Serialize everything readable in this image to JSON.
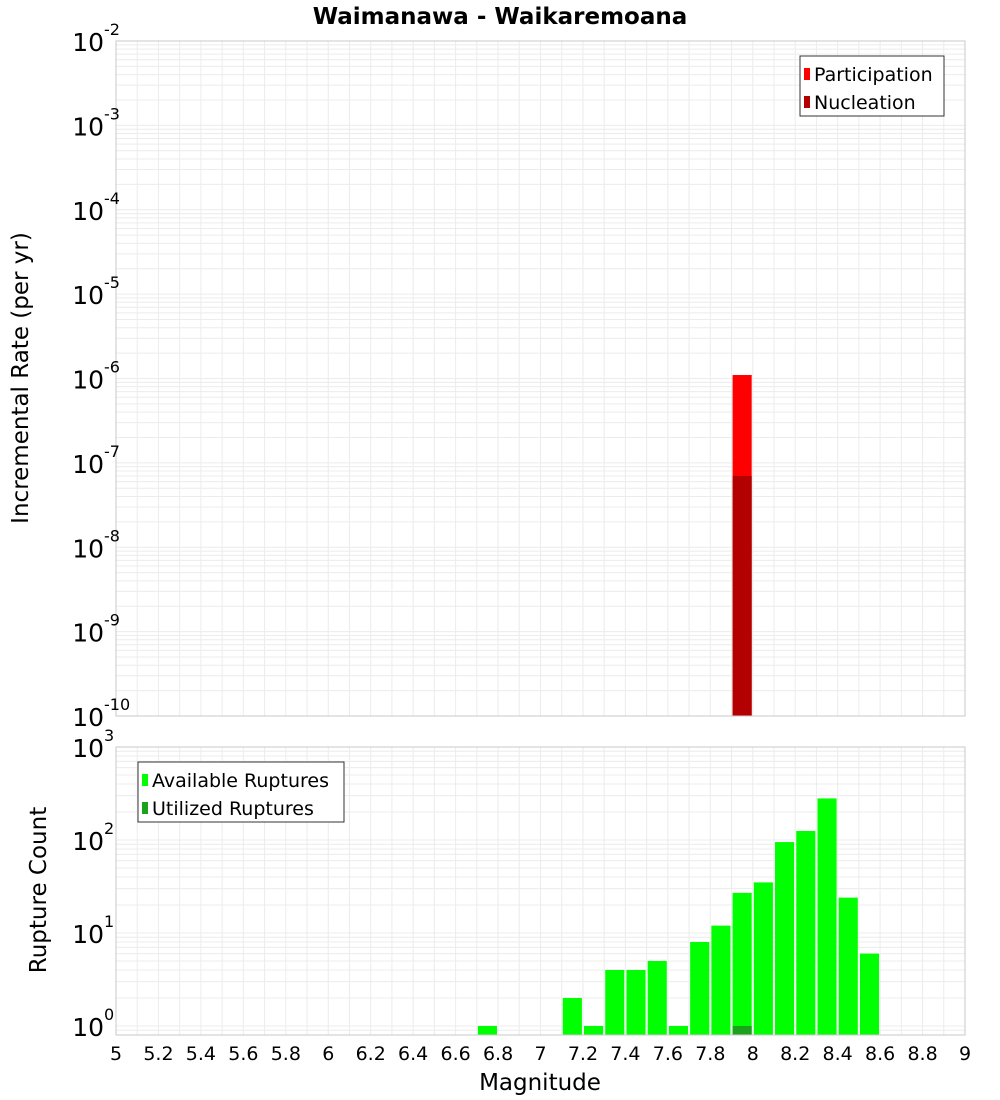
{
  "title": "Waimanawa - Waikaremoana",
  "colors": {
    "participation": "#ff0000",
    "nucleation": "#b30000",
    "available": "#00ff00",
    "utilized": "#1ba11b",
    "grid": "#ececec",
    "plot_border": "#c8c8c8"
  },
  "chart_data": [
    {
      "type": "bar",
      "panel": "top",
      "title": "Waimanawa - Waikaremoana",
      "xlabel": "",
      "ylabel": "Incremental Rate (per yr)",
      "yscale": "log",
      "xlim": [
        5,
        9
      ],
      "ylim": [
        1e-10,
        0.01
      ],
      "y_tick_base": "10",
      "y_ticks": [
        {
          "value": 0.01,
          "exp": "-2"
        },
        {
          "value": 0.001,
          "exp": "-3"
        },
        {
          "value": 0.0001,
          "exp": "-4"
        },
        {
          "value": 1e-05,
          "exp": "-5"
        },
        {
          "value": 1e-06,
          "exp": "-6"
        },
        {
          "value": 1e-07,
          "exp": "-7"
        },
        {
          "value": 1e-08,
          "exp": "-8"
        },
        {
          "value": 1e-09,
          "exp": "-9"
        },
        {
          "value": 1e-10,
          "exp": "-10"
        }
      ],
      "bar_width": 0.09,
      "grid": true,
      "legend_position": "top-right",
      "series": [
        {
          "name": "Participation",
          "color": "#ff0000",
          "x": [
            7.95
          ],
          "values": [
            1.1e-06
          ]
        },
        {
          "name": "Nucleation",
          "color": "#b30000",
          "x": [
            7.95
          ],
          "values": [
            7e-08
          ]
        }
      ]
    },
    {
      "type": "bar",
      "panel": "bottom",
      "xlabel": "Magnitude",
      "ylabel": "Rupture Count",
      "yscale": "log",
      "xlim": [
        5,
        9
      ],
      "ylim": [
        0.8,
        1000
      ],
      "y_tick_base": "10",
      "y_ticks": [
        {
          "value": 1,
          "exp": "0"
        },
        {
          "value": 10,
          "exp": "1"
        },
        {
          "value": 100,
          "exp": "2"
        },
        {
          "value": 1000,
          "exp": "3"
        }
      ],
      "x_ticks": [
        "5",
        "5.2",
        "5.4",
        "5.6",
        "5.8",
        "6",
        "6.2",
        "6.4",
        "6.6",
        "6.8",
        "7",
        "7.2",
        "7.4",
        "7.6",
        "7.8",
        "8",
        "8.2",
        "8.4",
        "8.6",
        "8.8",
        "9"
      ],
      "bar_width": 0.09,
      "grid": true,
      "legend_position": "top-left",
      "series": [
        {
          "name": "Available Ruptures",
          "color": "#00ff00",
          "x": [
            6.75,
            7.15,
            7.25,
            7.35,
            7.45,
            7.55,
            7.65,
            7.75,
            7.85,
            7.95,
            8.05,
            8.15,
            8.25,
            8.35,
            8.45,
            8.55
          ],
          "values": [
            1,
            2,
            1,
            4,
            4,
            5,
            1,
            8,
            12,
            27,
            35,
            95,
            125,
            280,
            24,
            6
          ]
        },
        {
          "name": "Utilized Ruptures",
          "color": "#1ba11b",
          "x": [
            7.95
          ],
          "values": [
            1
          ]
        }
      ]
    }
  ]
}
